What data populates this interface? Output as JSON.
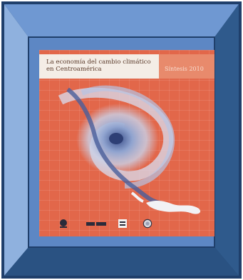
{
  "frame": {
    "colors": {
      "outer": "#244a78",
      "top_bevel": "#6f98d2",
      "left_bevel": "#8fb1de",
      "right_bevel": "#2f5a8c",
      "bottom_bevel": "#2a5282",
      "inner_border": "#1f3f6b"
    }
  },
  "cover": {
    "title": "La economía del cambio climático\nen Centroamérica",
    "year_label": "Síntesis 2010",
    "background_color": "#e2674a",
    "logos": [
      "un-logo",
      "sieca-logo",
      "ccad-logo",
      "round-seal-logo"
    ]
  }
}
